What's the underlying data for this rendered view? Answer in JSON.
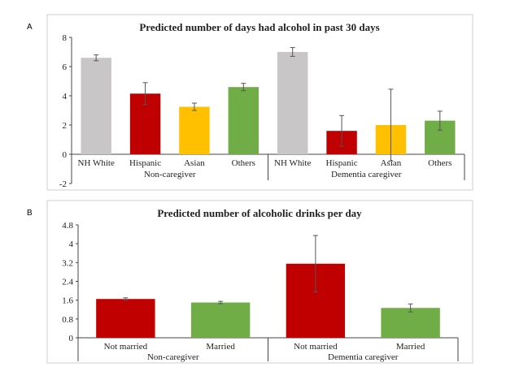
{
  "chart_data": [
    {
      "panel": "A",
      "type": "bar",
      "title": "Predicted number of days had alcohol in past 30 days",
      "ylim": [
        -2,
        8
      ],
      "yticks": [
        "8",
        "6",
        "4",
        "2",
        "0",
        "-2"
      ],
      "groups": [
        "Non-caregiver",
        "Dementia caregiver"
      ],
      "categories": [
        "NH White",
        "Hispanic",
        "Asian",
        "Others",
        "NH White",
        "Hispanic",
        "Asian",
        "Others"
      ],
      "values": [
        6.6,
        4.15,
        3.25,
        4.6,
        7.0,
        1.6,
        2.0,
        2.3
      ],
      "errors": [
        0.2,
        0.75,
        0.25,
        0.25,
        0.3,
        1.05,
        2.45,
        0.65
      ],
      "colors": [
        "#c8c6c6",
        "#c00000",
        "#ffc000",
        "#70ad47",
        "#c8c6c6",
        "#c00000",
        "#ffc000",
        "#70ad47"
      ]
    },
    {
      "panel": "B",
      "type": "bar",
      "title": "Predicted number of alcoholic drinks per day",
      "ylim": [
        0,
        4.8
      ],
      "yticks": [
        "4.8",
        "4",
        "3.2",
        "2.4",
        "1.6",
        "0.8",
        "0"
      ],
      "groups": [
        "Non-caregiver",
        "Dementia caregiver"
      ],
      "categories": [
        "Not married",
        "Married",
        "Not married",
        "Married"
      ],
      "values": [
        1.65,
        1.5,
        3.15,
        1.27
      ],
      "errors": [
        0.05,
        0.05,
        1.2,
        0.17
      ],
      "colors": [
        "#c00000",
        "#70ad47",
        "#c00000",
        "#70ad47"
      ]
    }
  ]
}
